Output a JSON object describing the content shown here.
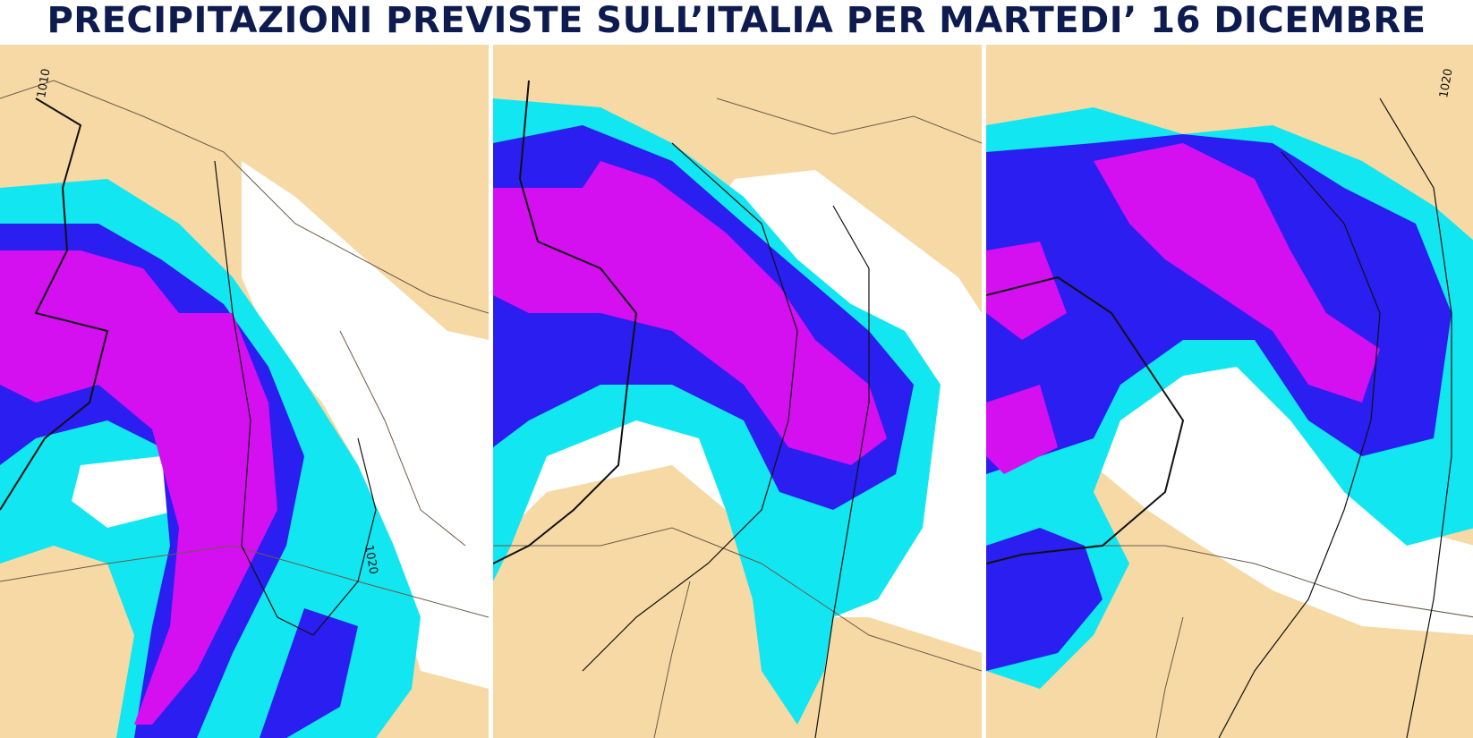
{
  "title": "PRECIPITAZIONI PREVISTE SULL’ITALIA PER MARTEDI’ 16 DICEMBRE",
  "panels": [
    {
      "isobar_labels": [
        "1010",
        "1020"
      ]
    },
    {
      "isobar_labels": []
    },
    {
      "isobar_labels": [
        "1020"
      ]
    }
  ]
}
